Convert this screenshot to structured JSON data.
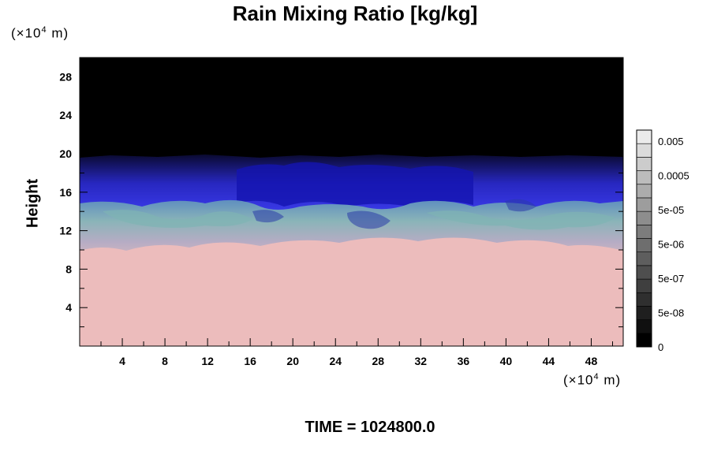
{
  "chart_data": {
    "type": "heatmap",
    "title": "Rain Mixing Ratio [kg/kg]",
    "ylabel": "Height",
    "xlabel": "",
    "x_unit": "(×10⁴ m)",
    "y_unit": "(×10⁴ m)",
    "x_ticks": [
      4,
      8,
      12,
      16,
      20,
      24,
      28,
      32,
      36,
      40,
      44,
      48
    ],
    "y_ticks": [
      4,
      8,
      12,
      16,
      20,
      24,
      28
    ],
    "xlim": [
      0,
      51
    ],
    "ylim": [
      0,
      30
    ],
    "colorbar": {
      "labels": [
        "0.005",
        "0.0005",
        "5e-05",
        "5e-06",
        "5e-07",
        "5e-08",
        "0"
      ],
      "levels": 16
    },
    "footer": "TIME = 1024800.0",
    "layers": [
      {
        "from": 0,
        "to": 10,
        "value": "pink"
      },
      {
        "from": 10,
        "to": 15,
        "value": "gray-teal mixing"
      },
      {
        "from": 15,
        "to": 20,
        "value": "blue"
      },
      {
        "from": 20,
        "to": 30,
        "value": "black"
      }
    ]
  }
}
